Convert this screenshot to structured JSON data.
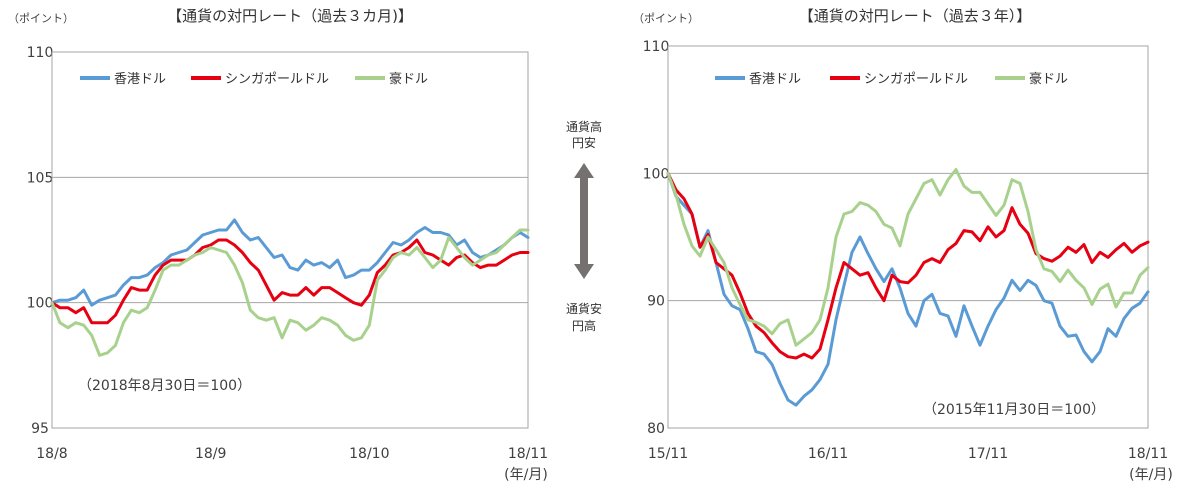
{
  "middle": {
    "up_line1": "通貨高",
    "up_line2": "円安",
    "down_line1": "通貨安",
    "down_line2": "円高"
  },
  "chart_data": [
    {
      "type": "line",
      "title": "【通貨の対円レート（過去３カ月)】",
      "ylabel": "（ポイント）",
      "x_unit": "(年/月)",
      "ylim": [
        95,
        110
      ],
      "y_ticks": [
        "95",
        "100",
        "105",
        "110"
      ],
      "x_ticks": [
        "18/8",
        "18/9",
        "18/10",
        "18/11"
      ],
      "annotation": "（2018年8月30日＝100）",
      "grid": "horizontal",
      "legend": "top-left",
      "series": [
        {
          "name": "香港ドル",
          "color": "#5b9bd5",
          "values": [
            100.0,
            100.1,
            100.1,
            100.2,
            100.5,
            99.9,
            100.1,
            100.2,
            100.3,
            100.7,
            101.0,
            101.0,
            101.1,
            101.4,
            101.6,
            101.9,
            102.0,
            102.1,
            102.4,
            102.7,
            102.8,
            102.9,
            102.9,
            103.3,
            102.8,
            102.5,
            102.6,
            102.2,
            101.8,
            101.9,
            101.4,
            101.3,
            101.7,
            101.5,
            101.6,
            101.4,
            101.7,
            101.0,
            101.1,
            101.3,
            101.3,
            101.6,
            102.0,
            102.4,
            102.3,
            102.5,
            102.8,
            103.0,
            102.8,
            102.8,
            102.7,
            102.3,
            102.5,
            102.0,
            101.8,
            101.9,
            102.1,
            102.3,
            102.6,
            102.8,
            102.6
          ]
        },
        {
          "name": "シンガポールドル",
          "color": "#e60012",
          "values": [
            100.0,
            99.8,
            99.8,
            99.6,
            99.8,
            99.2,
            99.2,
            99.2,
            99.5,
            100.1,
            100.6,
            100.5,
            100.5,
            101.1,
            101.5,
            101.7,
            101.7,
            101.7,
            101.9,
            102.2,
            102.3,
            102.5,
            102.5,
            102.3,
            102.0,
            101.6,
            101.3,
            100.7,
            100.1,
            100.4,
            100.3,
            100.3,
            100.6,
            100.3,
            100.6,
            100.6,
            100.4,
            100.2,
            100.0,
            99.9,
            100.3,
            101.2,
            101.5,
            101.9,
            102.0,
            102.2,
            102.5,
            102.0,
            101.9,
            101.7,
            101.5,
            101.8,
            101.9,
            101.6,
            101.4,
            101.5,
            101.5,
            101.7,
            101.9,
            102.0,
            102.0
          ]
        },
        {
          "name": "豪ドル",
          "color": "#a9d18e",
          "values": [
            100.0,
            99.2,
            99.0,
            99.2,
            99.1,
            98.7,
            97.9,
            98.0,
            98.3,
            99.2,
            99.7,
            99.6,
            99.8,
            100.5,
            101.3,
            101.5,
            101.5,
            101.7,
            101.9,
            102.0,
            102.2,
            102.1,
            102.0,
            101.5,
            100.8,
            99.7,
            99.4,
            99.3,
            99.4,
            98.6,
            99.3,
            99.2,
            98.9,
            99.1,
            99.4,
            99.3,
            99.1,
            98.7,
            98.5,
            98.6,
            99.1,
            100.9,
            101.3,
            101.8,
            102.0,
            101.9,
            102.2,
            101.8,
            101.4,
            101.7,
            102.6,
            102.2,
            101.8,
            101.5,
            101.7,
            101.9,
            102.0,
            102.3,
            102.6,
            102.9,
            102.9
          ]
        }
      ]
    },
    {
      "type": "line",
      "title": "【通貨の対円レート（過去３年）】",
      "ylabel": "（ポイント）",
      "x_unit": "(年/月)",
      "ylim": [
        80,
        110
      ],
      "y_ticks": [
        "80",
        "90",
        "100",
        "110"
      ],
      "x_ticks": [
        "15/11",
        "16/11",
        "17/11",
        "18/11"
      ],
      "annotation": "（2015年11月30日＝100）",
      "grid": "horizontal",
      "legend": "top-left",
      "series": [
        {
          "name": "香港ドル",
          "color": "#5b9bd5",
          "values": [
            100.0,
            98.2,
            97.5,
            96.8,
            94.2,
            95.5,
            93.0,
            90.5,
            89.6,
            89.3,
            87.8,
            86.0,
            85.8,
            85.0,
            83.5,
            82.2,
            81.8,
            82.5,
            83.0,
            83.8,
            85.0,
            88.5,
            91.2,
            93.8,
            95.0,
            93.7,
            92.5,
            91.5,
            92.5,
            91.0,
            89.0,
            88.0,
            90.0,
            90.5,
            89.0,
            88.8,
            87.2,
            89.6,
            88.0,
            86.5,
            88.0,
            89.3,
            90.2,
            91.6,
            90.8,
            91.6,
            91.2,
            90.0,
            89.8,
            88.0,
            87.2,
            87.3,
            86.0,
            85.2,
            86.0,
            87.8,
            87.2,
            88.6,
            89.4,
            89.8,
            90.7
          ]
        },
        {
          "name": "シンガポールドル",
          "color": "#e60012",
          "values": [
            100.0,
            98.7,
            98.0,
            96.8,
            94.2,
            95.2,
            93.0,
            92.5,
            92.0,
            90.6,
            89.0,
            88.0,
            87.5,
            86.7,
            86.0,
            85.6,
            85.5,
            85.8,
            85.5,
            86.2,
            88.5,
            91.0,
            93.0,
            92.5,
            92.0,
            92.2,
            91.0,
            90.0,
            92.0,
            91.5,
            91.4,
            92.0,
            93.0,
            93.3,
            93.0,
            94.0,
            94.5,
            95.5,
            95.4,
            94.7,
            95.8,
            95.0,
            95.5,
            97.3,
            96.0,
            95.3,
            93.7,
            93.3,
            93.1,
            93.5,
            94.2,
            93.8,
            94.4,
            93.0,
            93.8,
            93.4,
            94.0,
            94.5,
            93.8,
            94.3,
            94.6
          ]
        },
        {
          "name": "豪ドル",
          "color": "#a9d18e",
          "values": [
            100.0,
            98.3,
            96.0,
            94.3,
            93.5,
            95.0,
            94.0,
            93.0,
            91.0,
            89.7,
            88.5,
            88.3,
            88.0,
            87.4,
            88.2,
            88.5,
            86.5,
            87.0,
            87.5,
            88.5,
            91.0,
            95.0,
            96.8,
            97.0,
            97.7,
            97.5,
            97.0,
            96.0,
            95.7,
            94.3,
            96.8,
            98.0,
            99.2,
            99.5,
            98.3,
            99.5,
            100.3,
            99.0,
            98.5,
            98.5,
            97.6,
            96.7,
            97.5,
            99.5,
            99.2,
            97.0,
            94.0,
            92.5,
            92.3,
            91.5,
            92.4,
            91.6,
            91.0,
            89.7,
            90.9,
            91.3,
            89.5,
            90.6,
            90.6,
            92.0,
            92.6
          ]
        }
      ]
    }
  ]
}
